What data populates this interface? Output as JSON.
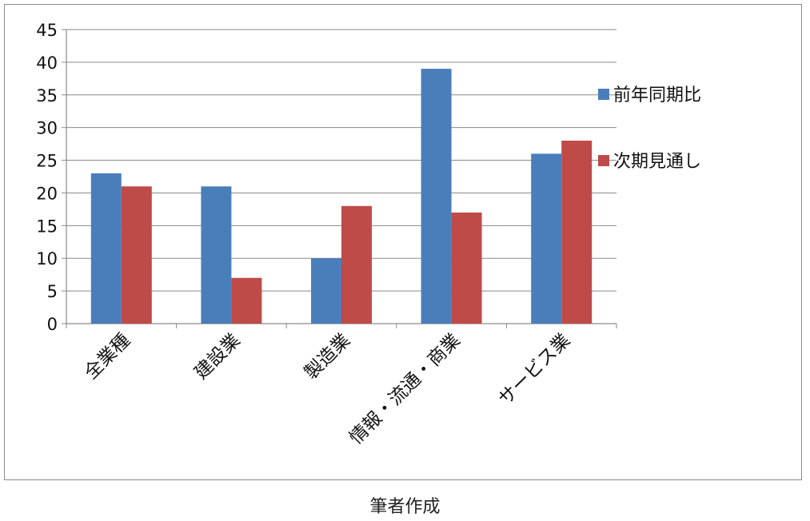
{
  "chart_data": {
    "type": "bar",
    "categories": [
      "全業種",
      "建設業",
      "製造業",
      "情報・流通・商業",
      "サービス業"
    ],
    "series": [
      {
        "name": "前年同期比",
        "values": [
          23,
          21,
          10,
          39,
          26
        ],
        "color": "#4a7ebb"
      },
      {
        "name": "次期見通し",
        "values": [
          21,
          7,
          18,
          17,
          28
        ],
        "color": "#be4b48"
      }
    ],
    "ylim": [
      0,
      45
    ],
    "yticks": [
      0,
      5,
      10,
      15,
      20,
      25,
      30,
      35,
      40,
      45
    ],
    "grid": true,
    "legend": "right",
    "xlabel": "",
    "ylabel": ""
  },
  "caption": "筆者作成"
}
